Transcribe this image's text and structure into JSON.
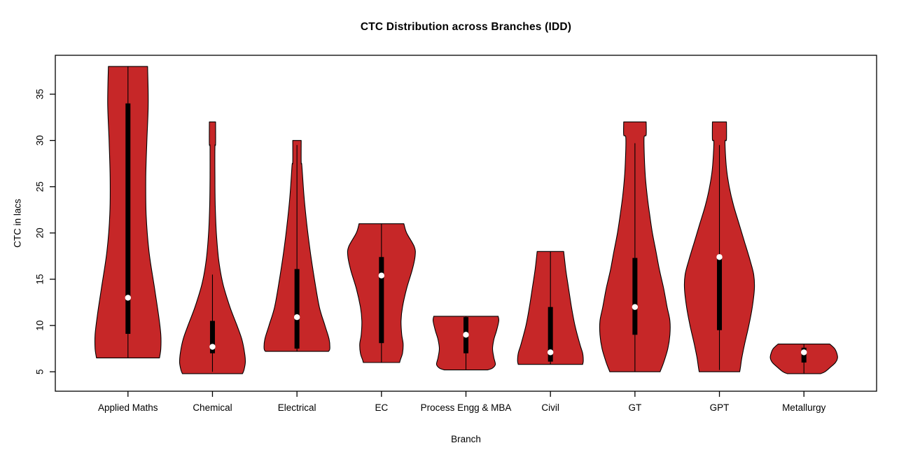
{
  "chart_data": {
    "type": "violin",
    "title": "CTC Distribution across Branches (IDD)",
    "xlabel": "Branch",
    "ylabel": "CTC in lacs",
    "x_categories": [
      "Applied Maths",
      "Chemical",
      "Electrical",
      "EC",
      "Process Engg & MBA",
      "Civil",
      "GT",
      "GPT",
      "Metallurgy"
    ],
    "y_ticks": [
      5,
      10,
      15,
      20,
      25,
      30,
      35
    ],
    "x_domain": [
      0.14,
      9.86
    ],
    "y_domain": [
      2.9,
      39.2
    ],
    "grid": false,
    "legend": "none",
    "colors": {
      "violin_fill": "#C62728",
      "outline": "#000000",
      "box": "#000000",
      "median_dot": "#FFFFFF",
      "background": "#FFFFFF",
      "text": "#000000"
    },
    "violins": [
      {
        "label": "Applied Maths",
        "center": 1,
        "stats": {
          "min": 6.5,
          "max": 38,
          "q1": 9.1,
          "q3": 34.0,
          "median": 13.0,
          "whisker_low": 6.5,
          "whisker_high": 38
        },
        "profile": [
          [
            38,
            0.232
          ],
          [
            34,
            0.24
          ],
          [
            30,
            0.224
          ],
          [
            26,
            0.211
          ],
          [
            22,
            0.215
          ],
          [
            18,
            0.249
          ],
          [
            14,
            0.315
          ],
          [
            11,
            0.364
          ],
          [
            9,
            0.389
          ],
          [
            7.5,
            0.389
          ],
          [
            6.5,
            0.373
          ]
        ]
      },
      {
        "label": "Chemical",
        "center": 2,
        "stats": {
          "min": 4.8,
          "max": 32,
          "q1": 7.0,
          "q3": 10.5,
          "median": 7.7,
          "whisker_low": 5.0,
          "whisker_high": 15.5
        },
        "profile": [
          [
            32,
            0.037
          ],
          [
            29.6,
            0.037
          ],
          [
            29.3,
            0.029
          ],
          [
            26,
            0.029
          ],
          [
            23,
            0.033
          ],
          [
            20,
            0.046
          ],
          [
            17,
            0.075
          ],
          [
            14.5,
            0.124
          ],
          [
            12,
            0.207
          ],
          [
            10,
            0.29
          ],
          [
            8.5,
            0.348
          ],
          [
            7,
            0.381
          ],
          [
            6,
            0.389
          ],
          [
            5.2,
            0.373
          ],
          [
            4.8,
            0.356
          ]
        ]
      },
      {
        "label": "Electrical",
        "center": 3,
        "stats": {
          "min": 7.2,
          "max": 30,
          "q1": 7.5,
          "q3": 16.1,
          "median": 10.9,
          "whisker_low": 7.2,
          "whisker_high": 29.5
        },
        "profile": [
          [
            30,
            0.05
          ],
          [
            27.6,
            0.05
          ],
          [
            27.3,
            0.058
          ],
          [
            24,
            0.083
          ],
          [
            21,
            0.116
          ],
          [
            18,
            0.157
          ],
          [
            15,
            0.207
          ],
          [
            12,
            0.265
          ],
          [
            10,
            0.331
          ],
          [
            8.5,
            0.381
          ],
          [
            7.5,
            0.389
          ],
          [
            7.2,
            0.373
          ]
        ]
      },
      {
        "label": "EC",
        "center": 4,
        "stats": {
          "min": 6.0,
          "max": 21,
          "q1": 8.1,
          "q3": 17.4,
          "median": 15.4,
          "whisker_low": 6.0,
          "whisker_high": 21
        },
        "profile": [
          [
            21,
            0.265
          ],
          [
            20,
            0.298
          ],
          [
            18.5,
            0.389
          ],
          [
            17.5,
            0.398
          ],
          [
            16,
            0.364
          ],
          [
            14,
            0.298
          ],
          [
            12,
            0.249
          ],
          [
            10.5,
            0.232
          ],
          [
            9,
            0.24
          ],
          [
            8,
            0.257
          ],
          [
            7,
            0.249
          ],
          [
            6.3,
            0.224
          ],
          [
            6,
            0.215
          ]
        ]
      },
      {
        "label": "Process Engg & MBA",
        "center": 5,
        "stats": {
          "min": 5.2,
          "max": 11,
          "q1": 7.0,
          "q3": 10.9,
          "median": 9.0,
          "whisker_low": 5.2,
          "whisker_high": 11
        },
        "profile": [
          [
            11,
            0.381
          ],
          [
            10.5,
            0.389
          ],
          [
            9.5,
            0.364
          ],
          [
            8.5,
            0.331
          ],
          [
            7.5,
            0.315
          ],
          [
            6.5,
            0.331
          ],
          [
            5.8,
            0.348
          ],
          [
            5.4,
            0.315
          ],
          [
            5.2,
            0.257
          ]
        ]
      },
      {
        "label": "Civil",
        "center": 6,
        "stats": {
          "min": 5.8,
          "max": 18,
          "q1": 6.1,
          "q3": 12.0,
          "median": 7.1,
          "whisker_low": 5.8,
          "whisker_high": 18
        },
        "profile": [
          [
            18,
            0.157
          ],
          [
            16,
            0.182
          ],
          [
            14,
            0.215
          ],
          [
            12,
            0.249
          ],
          [
            10,
            0.29
          ],
          [
            8,
            0.348
          ],
          [
            7,
            0.381
          ],
          [
            6.2,
            0.389
          ],
          [
            5.8,
            0.381
          ]
        ]
      },
      {
        "label": "GT",
        "center": 7,
        "stats": {
          "min": 5.0,
          "max": 32,
          "q1": 9.0,
          "q3": 17.3,
          "median": 12.0,
          "whisker_low": 5.0,
          "whisker_high": 29.7
        },
        "profile": [
          [
            32,
            0.133
          ],
          [
            30.6,
            0.133
          ],
          [
            30.3,
            0.108
          ],
          [
            28,
            0.112
          ],
          [
            26,
            0.124
          ],
          [
            24,
            0.145
          ],
          [
            22,
            0.174
          ],
          [
            20,
            0.207
          ],
          [
            18,
            0.249
          ],
          [
            16,
            0.29
          ],
          [
            14,
            0.34
          ],
          [
            12,
            0.381
          ],
          [
            10.5,
            0.414
          ],
          [
            9,
            0.414
          ],
          [
            7.5,
            0.389
          ],
          [
            6,
            0.34
          ],
          [
            5.2,
            0.306
          ],
          [
            5,
            0.298
          ]
        ]
      },
      {
        "label": "GPT",
        "center": 8,
        "stats": {
          "min": 5.0,
          "max": 32,
          "q1": 9.5,
          "q3": 17.5,
          "median": 17.4,
          "whisker_low": 5.2,
          "whisker_high": 29.5
        },
        "profile": [
          [
            32,
            0.083
          ],
          [
            30.1,
            0.083
          ],
          [
            29.8,
            0.066
          ],
          [
            27,
            0.083
          ],
          [
            25,
            0.116
          ],
          [
            23,
            0.166
          ],
          [
            21,
            0.232
          ],
          [
            19,
            0.298
          ],
          [
            17,
            0.364
          ],
          [
            15.5,
            0.406
          ],
          [
            14,
            0.414
          ],
          [
            12,
            0.389
          ],
          [
            10,
            0.348
          ],
          [
            8,
            0.298
          ],
          [
            6.5,
            0.265
          ],
          [
            5.5,
            0.249
          ],
          [
            5,
            0.24
          ]
        ]
      },
      {
        "label": "Metallurgy",
        "center": 9,
        "stats": {
          "min": 4.8,
          "max": 8,
          "q1": 6.0,
          "q3": 7.6,
          "median": 7.1,
          "whisker_low": 4.8,
          "whisker_high": 8
        },
        "profile": [
          [
            8,
            0.306
          ],
          [
            7.5,
            0.364
          ],
          [
            7,
            0.389
          ],
          [
            6.5,
            0.398
          ],
          [
            6,
            0.373
          ],
          [
            5.5,
            0.315
          ],
          [
            5,
            0.249
          ],
          [
            4.8,
            0.199
          ]
        ]
      }
    ]
  }
}
